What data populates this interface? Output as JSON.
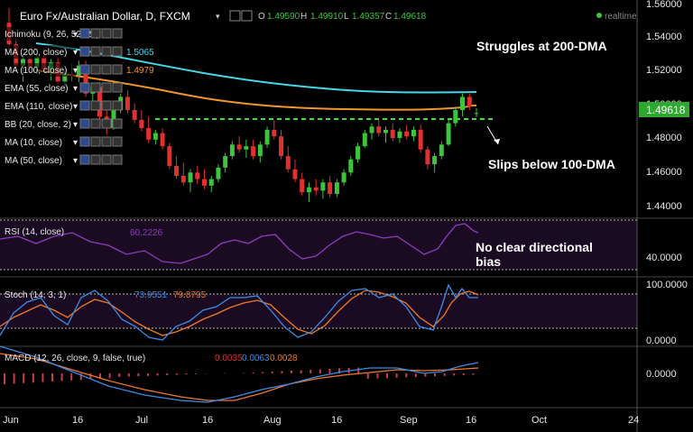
{
  "header": {
    "title": "Euro Fx/Australian Dollar, D, FXCM",
    "ohlc": [
      {
        "key": "O",
        "value": "1.49590"
      },
      {
        "key": "H",
        "value": "1.49910"
      },
      {
        "key": "L",
        "value": "1.49357"
      },
      {
        "key": "C",
        "value": "1.49618"
      }
    ],
    "realtime": "realtime"
  },
  "indicators": [
    {
      "label": "Ichimoku (9, 26, 52, 26)",
      "value": "",
      "color": "#e6e6e6"
    },
    {
      "label": "MA (200, close)",
      "value": "1.5065",
      "color": "#46d7e6"
    },
    {
      "label": "MA (100, close)",
      "value": "1.4979",
      "color": "#f0962d"
    },
    {
      "label": "EMA (55, close)",
      "value": "",
      "color": "#e6e6e6"
    },
    {
      "label": "EMA (110, close)",
      "value": "",
      "color": "#e6e6e6"
    },
    {
      "label": "BB (20, close, 2)",
      "value": "",
      "color": "#e6e6e6"
    },
    {
      "label": "MA (10, close)",
      "value": "",
      "color": "#e6e6e6"
    },
    {
      "label": "MA (50, close)",
      "value": "",
      "color": "#e6e6e6"
    }
  ],
  "annotations": {
    "struggles": "Struggles at 200-DMA",
    "slips": "Slips below 100-DMA",
    "rsi_note_1": "No clear directional",
    "rsi_note_2": "bias"
  },
  "price_axis": {
    "ticks": [
      "1.56000",
      "1.54000",
      "1.52000",
      "1.50000",
      "1.48000",
      "1.46000",
      "1.44000"
    ],
    "current": "1.49618"
  },
  "x_axis": {
    "ticks": [
      "Jun",
      "16",
      "Jul",
      "16",
      "Aug",
      "16",
      "Sep",
      "16",
      "Oct",
      "24"
    ]
  },
  "rsi": {
    "label": "RSI (14, close)",
    "value": "60.2226",
    "tick": "40.0000"
  },
  "stoch": {
    "label": "Stoch (14, 3, 1)",
    "k": "73.9551",
    "d": "79.8795",
    "ticks": [
      "100.0000",
      "0.0000"
    ]
  },
  "macd": {
    "label": "MACD (12, 26, close, 9, false, true)",
    "v1": "0.0035",
    "v2": "0.0063",
    "v3": "0.0028",
    "tick": "0.0000"
  },
  "colors": {
    "up": "#3cc43c",
    "down": "#e03030",
    "ma200": "#46d7e6",
    "ma100": "#f0962d",
    "rsi": "#8c3cbe",
    "stoch_k": "#3c8ce6",
    "stoch_d": "#f07828",
    "macd": "#3c8ce6",
    "signal": "#f07828",
    "hist": "#c83c50",
    "dashed": "#46dc46"
  },
  "chart_data": {
    "type": "candlestick",
    "title": "Euro Fx/Australian Dollar, D, FXCM",
    "ylim": [
      1.4333,
      1.5627
    ],
    "candles": [
      [
        1.551,
        1.56,
        1.534,
        1.538
      ],
      [
        1.538,
        1.542,
        1.522,
        1.525
      ],
      [
        1.525,
        1.532,
        1.515,
        1.529
      ],
      [
        1.529,
        1.533,
        1.522,
        1.524
      ],
      [
        1.524,
        1.532,
        1.52,
        1.53
      ],
      [
        1.53,
        1.535,
        1.521,
        1.523
      ],
      [
        1.523,
        1.529,
        1.516,
        1.527
      ],
      [
        1.527,
        1.53,
        1.512,
        1.515
      ],
      [
        1.515,
        1.522,
        1.51,
        1.52
      ],
      [
        1.52,
        1.526,
        1.515,
        1.519
      ],
      [
        1.519,
        1.528,
        1.515,
        1.525
      ],
      [
        1.525,
        1.528,
        1.506,
        1.508
      ],
      [
        1.508,
        1.514,
        1.501,
        1.512
      ],
      [
        1.512,
        1.515,
        1.492,
        1.494
      ],
      [
        1.494,
        1.5,
        1.483,
        1.487
      ],
      [
        1.487,
        1.499,
        1.486,
        1.498
      ],
      [
        1.498,
        1.508,
        1.496,
        1.506
      ],
      [
        1.506,
        1.51,
        1.496,
        1.498
      ],
      [
        1.498,
        1.502,
        1.49,
        1.492
      ],
      [
        1.492,
        1.498,
        1.485,
        1.487
      ],
      [
        1.487,
        1.494,
        1.478,
        1.48
      ],
      [
        1.48,
        1.486,
        1.477,
        1.484
      ],
      [
        1.484,
        1.487,
        1.474,
        1.476
      ],
      [
        1.476,
        1.478,
        1.462,
        1.464
      ],
      [
        1.464,
        1.47,
        1.456,
        1.458
      ],
      [
        1.458,
        1.466,
        1.452,
        1.454
      ],
      [
        1.454,
        1.462,
        1.448,
        1.46
      ],
      [
        1.46,
        1.464,
        1.453,
        1.456
      ],
      [
        1.456,
        1.462,
        1.45,
        1.452
      ],
      [
        1.452,
        1.458,
        1.448,
        1.456
      ],
      [
        1.456,
        1.465,
        1.454,
        1.463
      ],
      [
        1.463,
        1.472,
        1.46,
        1.47
      ],
      [
        1.47,
        1.479,
        1.468,
        1.477
      ],
      [
        1.477,
        1.482,
        1.472,
        1.474
      ],
      [
        1.474,
        1.48,
        1.469,
        1.476
      ],
      [
        1.476,
        1.48,
        1.468,
        1.47
      ],
      [
        1.47,
        1.479,
        1.466,
        1.477
      ],
      [
        1.477,
        1.488,
        1.475,
        1.486
      ],
      [
        1.486,
        1.492,
        1.48,
        1.482
      ],
      [
        1.482,
        1.486,
        1.468,
        1.47
      ],
      [
        1.47,
        1.476,
        1.46,
        1.462
      ],
      [
        1.462,
        1.468,
        1.454,
        1.456
      ],
      [
        1.456,
        1.46,
        1.446,
        1.448
      ],
      [
        1.448,
        1.454,
        1.442,
        1.451
      ],
      [
        1.451,
        1.456,
        1.446,
        1.449
      ],
      [
        1.449,
        1.456,
        1.444,
        1.454
      ],
      [
        1.454,
        1.458,
        1.445,
        1.447
      ],
      [
        1.447,
        1.456,
        1.445,
        1.454
      ],
      [
        1.454,
        1.462,
        1.452,
        1.46
      ],
      [
        1.46,
        1.47,
        1.458,
        1.468
      ],
      [
        1.468,
        1.478,
        1.466,
        1.476
      ],
      [
        1.476,
        1.486,
        1.475,
        1.484
      ],
      [
        1.484,
        1.49,
        1.48,
        1.488
      ],
      [
        1.488,
        1.492,
        1.482,
        1.484
      ],
      [
        1.484,
        1.488,
        1.478,
        1.486
      ],
      [
        1.486,
        1.49,
        1.479,
        1.481
      ],
      [
        1.481,
        1.487,
        1.478,
        1.485
      ],
      [
        1.485,
        1.489,
        1.48,
        1.482
      ],
      [
        1.482,
        1.488,
        1.479,
        1.486
      ],
      [
        1.486,
        1.489,
        1.472,
        1.474
      ],
      [
        1.474,
        1.476,
        1.462,
        1.465
      ],
      [
        1.465,
        1.472,
        1.46,
        1.47
      ],
      [
        1.47,
        1.479,
        1.468,
        1.477
      ],
      [
        1.477,
        1.492,
        1.476,
        1.49
      ],
      [
        1.49,
        1.5,
        1.488,
        1.498
      ],
      [
        1.498,
        1.508,
        1.494,
        1.506
      ],
      [
        1.506,
        1.508,
        1.498,
        1.5
      ],
      [
        1.4959,
        1.4991,
        1.4936,
        1.4962
      ]
    ],
    "x_ticks": [
      "Jun",
      "16",
      "Jul",
      "16",
      "Aug",
      "16",
      "Sep",
      "16",
      "Oct",
      "24"
    ]
  }
}
